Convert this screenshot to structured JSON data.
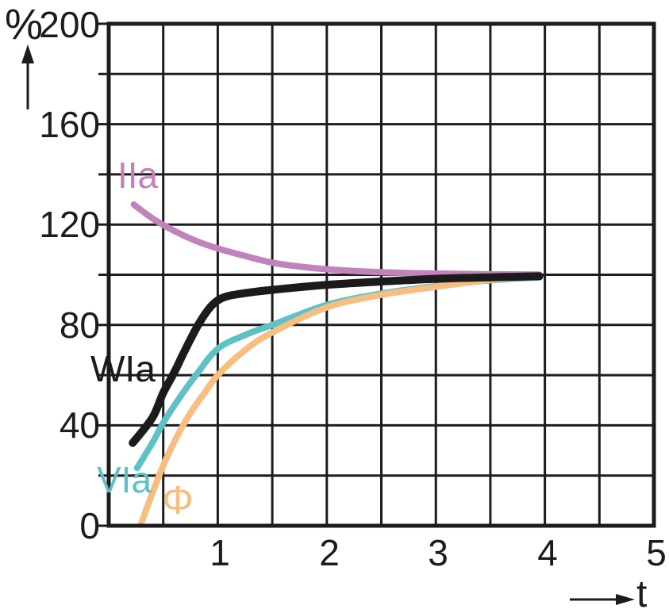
{
  "chart_data": {
    "type": "line",
    "title": "",
    "xlabel": "t",
    "ylabel": "%",
    "xlim": [
      0,
      5
    ],
    "ylim": [
      0,
      200
    ],
    "x_grid_step": 0.5,
    "y_grid_step": 20,
    "x_ticks": [
      1,
      2,
      3,
      4,
      5
    ],
    "y_ticks": [
      200,
      160,
      120,
      80,
      40,
      0
    ],
    "grid": true,
    "legend_position": "inline-labels",
    "ink_color": "#1c1c1c",
    "series": [
      {
        "name": "IIa",
        "label": "IIa",
        "color": "#c083bc",
        "width": 8,
        "points": [
          [
            0.23,
            128
          ],
          [
            0.4,
            122.5
          ],
          [
            0.6,
            117.5
          ],
          [
            0.8,
            113.5
          ],
          [
            1.0,
            110.5
          ],
          [
            1.25,
            107.5
          ],
          [
            1.5,
            104.8
          ],
          [
            1.75,
            103.3
          ],
          [
            2.0,
            102.2
          ],
          [
            2.5,
            101.0
          ],
          [
            3.0,
            100.5
          ],
          [
            3.5,
            100.2
          ],
          [
            3.95,
            100.1
          ]
        ]
      },
      {
        "name": "WIa",
        "label": "WIa",
        "color": "#1b1b1b",
        "width": 10,
        "points": [
          [
            0.22,
            33
          ],
          [
            0.4,
            43
          ],
          [
            0.5,
            53
          ],
          [
            0.6,
            61
          ],
          [
            0.7,
            70
          ],
          [
            0.82,
            80
          ],
          [
            0.92,
            86.5
          ],
          [
            1.0,
            89.8
          ],
          [
            1.1,
            91.6
          ],
          [
            1.3,
            93.0
          ],
          [
            1.5,
            94.0
          ],
          [
            2.0,
            96.0
          ],
          [
            2.5,
            97.3
          ],
          [
            3.0,
            98.4
          ],
          [
            3.5,
            99.0
          ],
          [
            3.95,
            99.4
          ]
        ]
      },
      {
        "name": "VIa",
        "label": "VIa",
        "color": "#5fc1c6",
        "width": 8,
        "points": [
          [
            0.26,
            23
          ],
          [
            0.4,
            33
          ],
          [
            0.5,
            41
          ],
          [
            0.65,
            51
          ],
          [
            0.8,
            60
          ],
          [
            1.0,
            70.5
          ],
          [
            1.25,
            76
          ],
          [
            1.5,
            80
          ],
          [
            2.0,
            88
          ],
          [
            2.5,
            92.5
          ],
          [
            3.0,
            95.5
          ],
          [
            3.5,
            97.8
          ],
          [
            3.95,
            99.0
          ]
        ]
      },
      {
        "name": "Phi",
        "label": "Φ",
        "color": "#f8bd80",
        "width": 8,
        "points": [
          [
            0.29,
            0
          ],
          [
            0.4,
            13
          ],
          [
            0.5,
            24
          ],
          [
            0.62,
            35
          ],
          [
            0.75,
            45
          ],
          [
            0.88,
            53
          ],
          [
            1.0,
            60
          ],
          [
            1.25,
            70
          ],
          [
            1.5,
            77
          ],
          [
            2.0,
            87
          ],
          [
            2.5,
            92
          ],
          [
            3.0,
            95.2
          ],
          [
            3.5,
            98
          ],
          [
            3.95,
            99.7
          ]
        ]
      }
    ]
  }
}
